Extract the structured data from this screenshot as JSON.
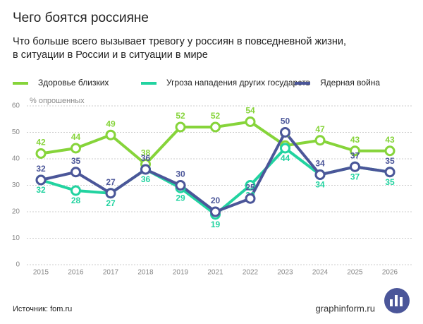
{
  "chart_data": {
    "type": "line",
    "title": "Чего боятся россияне",
    "subtitle": [
      "Что больше всего вызывает тревогу у россиян в повседневной жизни,",
      "в ситуации в России и в ситуации в мире"
    ],
    "y_label": "% опрошенных",
    "source": "Источник: fom.ru",
    "brand": "graphinform.ru",
    "categories": [
      "2015",
      "2016",
      "2017",
      "2018",
      "2019",
      "2021",
      "2022",
      "2023",
      "2024",
      "2025",
      "2026"
    ],
    "series": [
      {
        "name": "Здоровье близких",
        "color": "#86d43a",
        "values": [
          42,
          44,
          49,
          38,
          52,
          52,
          54,
          45,
          47,
          43,
          43
        ]
      },
      {
        "name": "Угроза нападения других государств",
        "color": "#22d3a0",
        "values": [
          32,
          28,
          27,
          36,
          29,
          19,
          30,
          44,
          34,
          37,
          35
        ]
      },
      {
        "name": "Ядерная война",
        "color": "#4b5699",
        "values": [
          32,
          35,
          27,
          36,
          30,
          20,
          25,
          50,
          34,
          37,
          35
        ]
      }
    ],
    "ylim": [
      0,
      60
    ],
    "yticks": [
      0,
      10,
      20,
      30,
      40,
      50,
      60
    ],
    "grid": true
  }
}
